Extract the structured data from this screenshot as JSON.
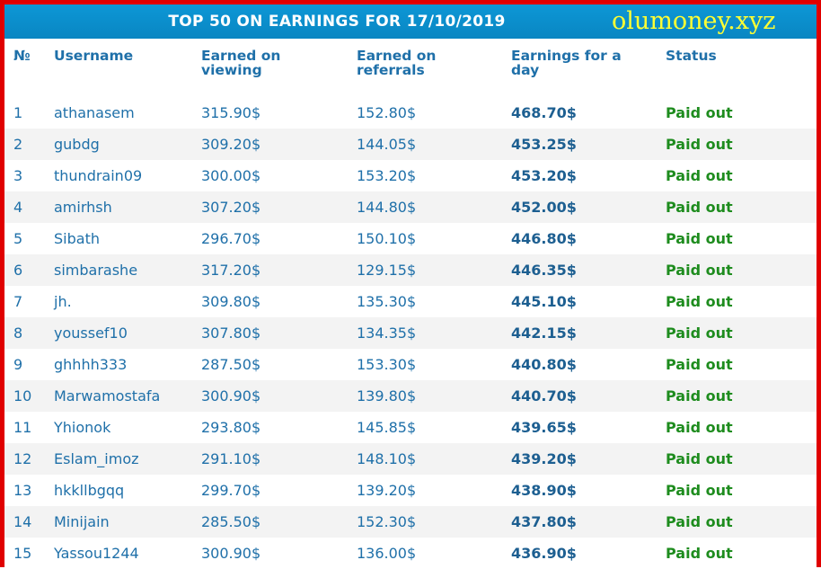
{
  "header": {
    "title": "TOP 50 ON EARNINGS FOR 17/10/2019",
    "brand": "olumoney.xyz"
  },
  "colors": {
    "frame": "#e00000",
    "header_bg": "#0a8fcf",
    "brand": "#ffff33",
    "text": "#1f70a9",
    "status": "#1e8c1e"
  },
  "table": {
    "columns": [
      "№",
      "Username",
      "Earned on viewing",
      "Earned on referrals",
      "Earnings for a day",
      "Status"
    ],
    "rows": [
      {
        "no": "1",
        "username": "athanasem",
        "viewing": "315.90$",
        "referrals": "152.80$",
        "day": "468.70$",
        "status": "Paid out"
      },
      {
        "no": "2",
        "username": "gubdg",
        "viewing": "309.20$",
        "referrals": "144.05$",
        "day": "453.25$",
        "status": "Paid out"
      },
      {
        "no": "3",
        "username": "thundrain09",
        "viewing": "300.00$",
        "referrals": "153.20$",
        "day": "453.20$",
        "status": "Paid out"
      },
      {
        "no": "4",
        "username": "amirhsh",
        "viewing": "307.20$",
        "referrals": "144.80$",
        "day": "452.00$",
        "status": "Paid out"
      },
      {
        "no": "5",
        "username": "Sibath",
        "viewing": "296.70$",
        "referrals": "150.10$",
        "day": "446.80$",
        "status": "Paid out"
      },
      {
        "no": "6",
        "username": "simbarashe",
        "viewing": "317.20$",
        "referrals": "129.15$",
        "day": "446.35$",
        "status": "Paid out"
      },
      {
        "no": "7",
        "username": "jh.",
        "viewing": "309.80$",
        "referrals": "135.30$",
        "day": "445.10$",
        "status": "Paid out"
      },
      {
        "no": "8",
        "username": "youssef10",
        "viewing": "307.80$",
        "referrals": "134.35$",
        "day": "442.15$",
        "status": "Paid out"
      },
      {
        "no": "9",
        "username": "ghhhh333",
        "viewing": "287.50$",
        "referrals": "153.30$",
        "day": "440.80$",
        "status": "Paid out"
      },
      {
        "no": "10",
        "username": "Marwamostafa",
        "viewing": "300.90$",
        "referrals": "139.80$",
        "day": "440.70$",
        "status": "Paid out"
      },
      {
        "no": "11",
        "username": "Yhionok",
        "viewing": "293.80$",
        "referrals": "145.85$",
        "day": "439.65$",
        "status": "Paid out"
      },
      {
        "no": "12",
        "username": "Eslam_imoz",
        "viewing": "291.10$",
        "referrals": "148.10$",
        "day": "439.20$",
        "status": "Paid out"
      },
      {
        "no": "13",
        "username": "hkkllbgqq",
        "viewing": "299.70$",
        "referrals": "139.20$",
        "day": "438.90$",
        "status": "Paid out"
      },
      {
        "no": "14",
        "username": "Minijain",
        "viewing": "285.50$",
        "referrals": "152.30$",
        "day": "437.80$",
        "status": "Paid out"
      },
      {
        "no": "15",
        "username": "Yassou1244",
        "viewing": "300.90$",
        "referrals": "136.00$",
        "day": "436.90$",
        "status": "Paid out"
      }
    ]
  }
}
